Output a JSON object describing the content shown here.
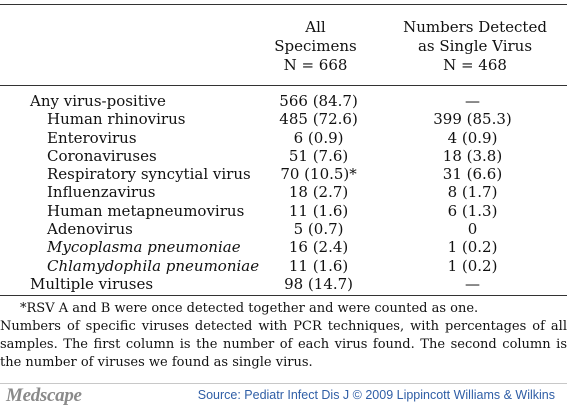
{
  "header": {
    "col_all": [
      "All",
      "Specimens",
      "N = 668"
    ],
    "col_single": [
      "Numbers Detected",
      "as Single Virus",
      "N = 468"
    ]
  },
  "rows": [
    {
      "label": "Any virus-positive",
      "level": 0,
      "italic": false,
      "all": "566 (84.7)",
      "single": "—"
    },
    {
      "label": "Human rhinovirus",
      "level": 1,
      "italic": false,
      "all": "485 (72.6)",
      "single": "399 (85.3)"
    },
    {
      "label": "Enterovirus",
      "level": 1,
      "italic": false,
      "all": "6 (0.9)",
      "single": "4 (0.9)"
    },
    {
      "label": "Coronaviruses",
      "level": 1,
      "italic": false,
      "all": "51 (7.6)",
      "single": "18 (3.8)"
    },
    {
      "label": "Respiratory syncytial virus",
      "level": 1,
      "italic": false,
      "all": "70 (10.5)*",
      "single": "31 (6.6)"
    },
    {
      "label": "Influenzavirus",
      "level": 1,
      "italic": false,
      "all": "18 (2.7)",
      "single": "8 (1.7)"
    },
    {
      "label": "Human metapneumovirus",
      "level": 1,
      "italic": false,
      "all": "11 (1.6)",
      "single": "6 (1.3)"
    },
    {
      "label": "Adenovirus",
      "level": 1,
      "italic": false,
      "all": "5 (0.7)",
      "single": "0"
    },
    {
      "label": "Mycoplasma pneumoniae",
      "level": 1,
      "italic": true,
      "all": "16 (2.4)",
      "single": "1 (0.2)"
    },
    {
      "label": "Chlamydophila pneumoniae",
      "level": 1,
      "italic": true,
      "all": "11 (1.6)",
      "single": "1 (0.2)"
    },
    {
      "label": "Multiple viruses",
      "level": 0,
      "italic": false,
      "all": "98 (14.7)",
      "single": "—"
    }
  ],
  "footnotes": {
    "asterisk": "*RSV A and B were once detected together and were counted as one.",
    "caption": "Numbers of specific viruses detected with PCR techniques, with percentages of all samples. The first column is the number of each virus found. The second column is the number of viruses we found as single virus."
  },
  "footer": {
    "logo_text": "Medscape",
    "source": "Source: Pediatr Infect Dis J © 2009 Lippincott Williams & Wilkins"
  }
}
